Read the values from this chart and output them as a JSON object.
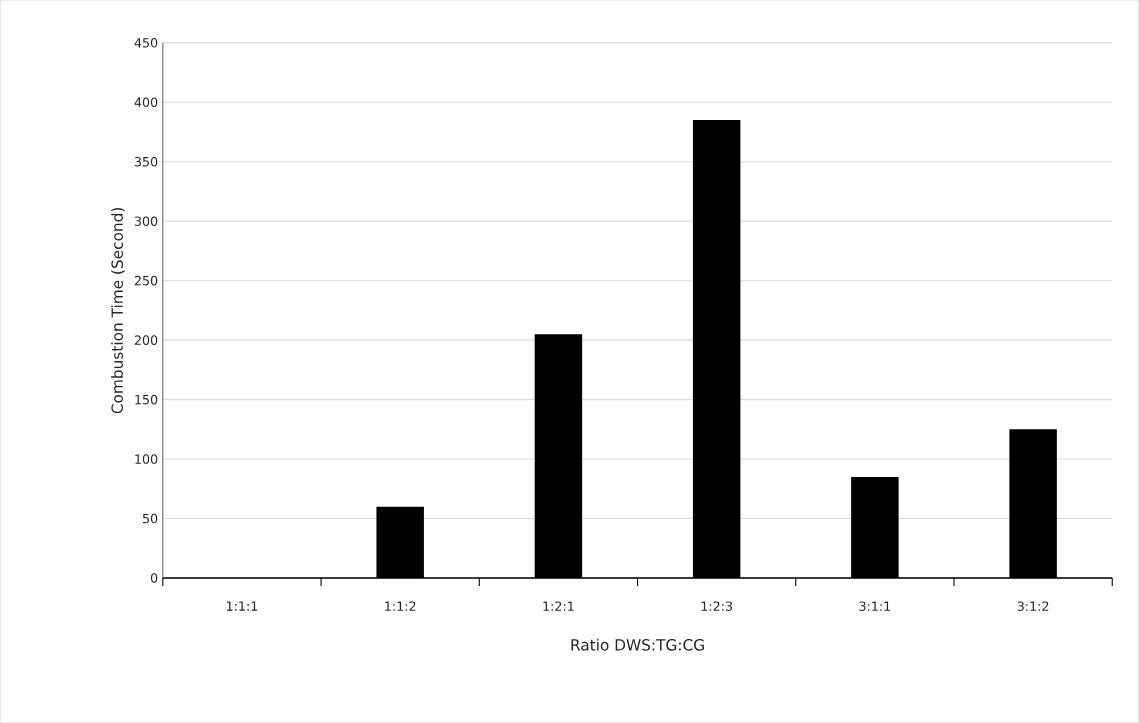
{
  "chart_data": {
    "type": "bar",
    "xlabel": "Ratio DWS:TG:CG",
    "ylabel": "Combustion Time (Second)",
    "categories": [
      "1:1:1",
      "1:1:2",
      "1:2:1",
      "1:2:3",
      "3:1:1",
      "3:1:2"
    ],
    "values": [
      0,
      60,
      205,
      385,
      85,
      125
    ],
    "color": "#000000",
    "ylim": [
      0,
      450
    ],
    "yticks": [
      0,
      50,
      100,
      150,
      200,
      250,
      300,
      350,
      400,
      450
    ],
    "grid": "y"
  }
}
